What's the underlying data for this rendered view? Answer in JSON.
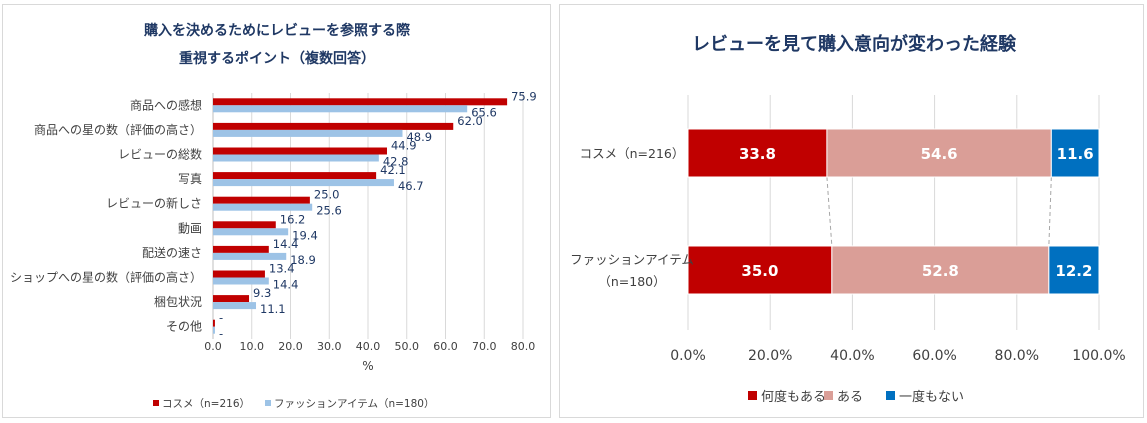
{
  "chart_data": [
    {
      "type": "bar",
      "orientation": "horizontal",
      "title_lines": [
        "購入を決めるためにレビューを参照する際",
        "重視するポイント（複数回答）"
      ],
      "categories": [
        "商品への感想",
        "商品への星の数（評価の高さ）",
        "レビューの総数",
        "写真",
        "レビューの新しさ",
        "動画",
        "配送の速さ",
        "ショップへの星の数（評価の高さ）",
        "梱包状況",
        "その他"
      ],
      "series": [
        {
          "name": "コスメ（n=216）",
          "color": "#C00000",
          "values": [
            75.9,
            62.0,
            44.9,
            42.1,
            25.0,
            16.2,
            14.4,
            13.4,
            9.3,
            0.5
          ],
          "labels": [
            "75.9",
            "62.0",
            "44.9",
            "42.1",
            "25.0",
            "16.2",
            "14.4",
            "13.4",
            "9.3",
            "-"
          ]
        },
        {
          "name": "ファッションアイテム（n=180）",
          "color": "#9DC3E6",
          "values": [
            65.6,
            48.9,
            42.8,
            46.7,
            25.6,
            19.4,
            18.9,
            14.4,
            11.1,
            0.5
          ],
          "labels": [
            "65.6",
            "48.9",
            "42.8",
            "46.7",
            "25.6",
            "19.4",
            "18.9",
            "14.4",
            "11.1",
            "-"
          ]
        }
      ],
      "x_ticks": [
        "0.0",
        "10.0",
        "20.0",
        "30.0",
        "40.0",
        "50.0",
        "60.0",
        "70.0",
        "80.0"
      ],
      "xlim": [
        0,
        80
      ],
      "xlabel": "%",
      "legend_position": "bottom"
    },
    {
      "type": "bar",
      "orientation": "horizontal",
      "stacked": true,
      "percent": true,
      "title": "レビューを見て購入意向が変わった経験",
      "categories": [
        {
          "lines": [
            "コスメ（n=216）"
          ]
        },
        {
          "lines": [
            "ファッションアイテム",
            "（n=180）"
          ]
        }
      ],
      "series": [
        {
          "name": "何度もある",
          "color": "#C00000",
          "values": [
            33.8,
            35.0
          ],
          "labels": [
            "33.8",
            "35.0"
          ]
        },
        {
          "name": "ある",
          "color": "#DA9E97",
          "values": [
            54.6,
            52.8
          ],
          "labels": [
            "54.6",
            "52.8"
          ]
        },
        {
          "name": "一度もない",
          "color": "#0070C0",
          "values": [
            11.6,
            12.2
          ],
          "labels": [
            "11.6",
            "12.2"
          ]
        }
      ],
      "x_ticks": [
        "0.0%",
        "20.0%",
        "40.0%",
        "60.0%",
        "80.0%",
        "100.0%"
      ],
      "xlim": [
        0,
        100
      ],
      "grid": true,
      "legend_position": "bottom"
    }
  ]
}
